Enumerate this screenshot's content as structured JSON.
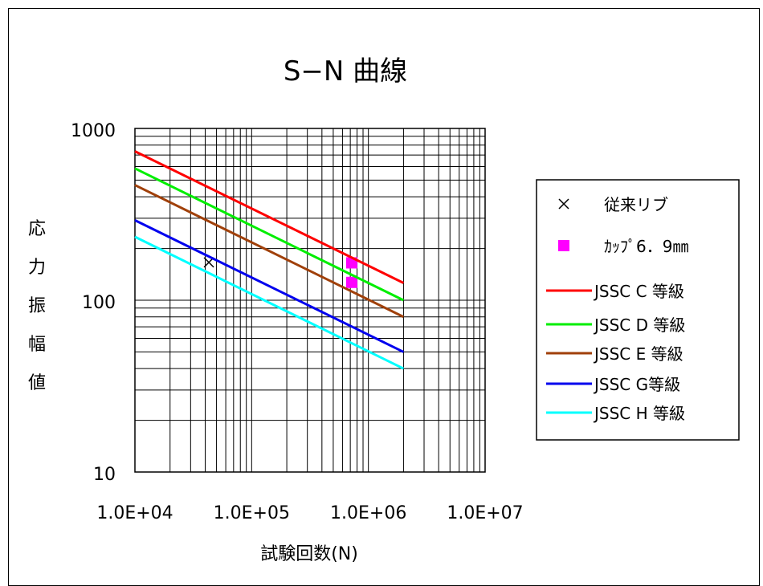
{
  "chart_data": {
    "type": "line",
    "title": "S−N 曲線",
    "xlabel": "試験回数(N)",
    "ylabel_chars": [
      "応",
      "力",
      "振",
      "幅",
      "値"
    ],
    "x_scale": "log",
    "y_scale": "log",
    "xlim": [
      10000,
      10000000
    ],
    "ylim": [
      10,
      1000
    ],
    "grid": true,
    "legend_position": "right",
    "x_ticks": [
      {
        "value": 10000,
        "label": "1.0E+04"
      },
      {
        "value": 100000,
        "label": "1.0E+05"
      },
      {
        "value": 1000000,
        "label": "1.0E+06"
      },
      {
        "value": 10000000,
        "label": "1.0E+07"
      }
    ],
    "y_ticks": [
      {
        "value": 10,
        "label": "10"
      },
      {
        "value": 100,
        "label": "100"
      },
      {
        "value": 1000,
        "label": "1000"
      }
    ],
    "series": [
      {
        "name": "従来リブ",
        "kind": "marker",
        "marker": "x",
        "color": "#000000",
        "points": [
          {
            "x": 43000,
            "y": 166
          }
        ]
      },
      {
        "name": "ｶｯﾌﾟ6．9㎜",
        "kind": "marker",
        "marker": "square",
        "color": "#ff00ff",
        "points": [
          {
            "x": 720000,
            "y": 165
          },
          {
            "x": 720000,
            "y": 127
          }
        ]
      },
      {
        "name": "JSSC C 等級",
        "kind": "line",
        "color": "#ff0000",
        "points": [
          {
            "x": 10000,
            "y": 736
          },
          {
            "x": 2000000,
            "y": 126
          }
        ]
      },
      {
        "name": "JSSC D 等級",
        "kind": "line",
        "color": "#00ee00",
        "points": [
          {
            "x": 10000,
            "y": 585
          },
          {
            "x": 2000000,
            "y": 100
          }
        ]
      },
      {
        "name": "JSSC E 等級",
        "kind": "line",
        "color": "#a0400a",
        "points": [
          {
            "x": 10000,
            "y": 468
          },
          {
            "x": 2000000,
            "y": 80
          }
        ]
      },
      {
        "name": "JSSC  G等級",
        "kind": "line",
        "color": "#0000ee",
        "points": [
          {
            "x": 10000,
            "y": 292
          },
          {
            "x": 2000000,
            "y": 50
          }
        ]
      },
      {
        "name": "JSSC H 等級",
        "kind": "line",
        "color": "#00ffff",
        "points": [
          {
            "x": 10000,
            "y": 234
          },
          {
            "x": 2000000,
            "y": 40
          }
        ]
      }
    ]
  }
}
